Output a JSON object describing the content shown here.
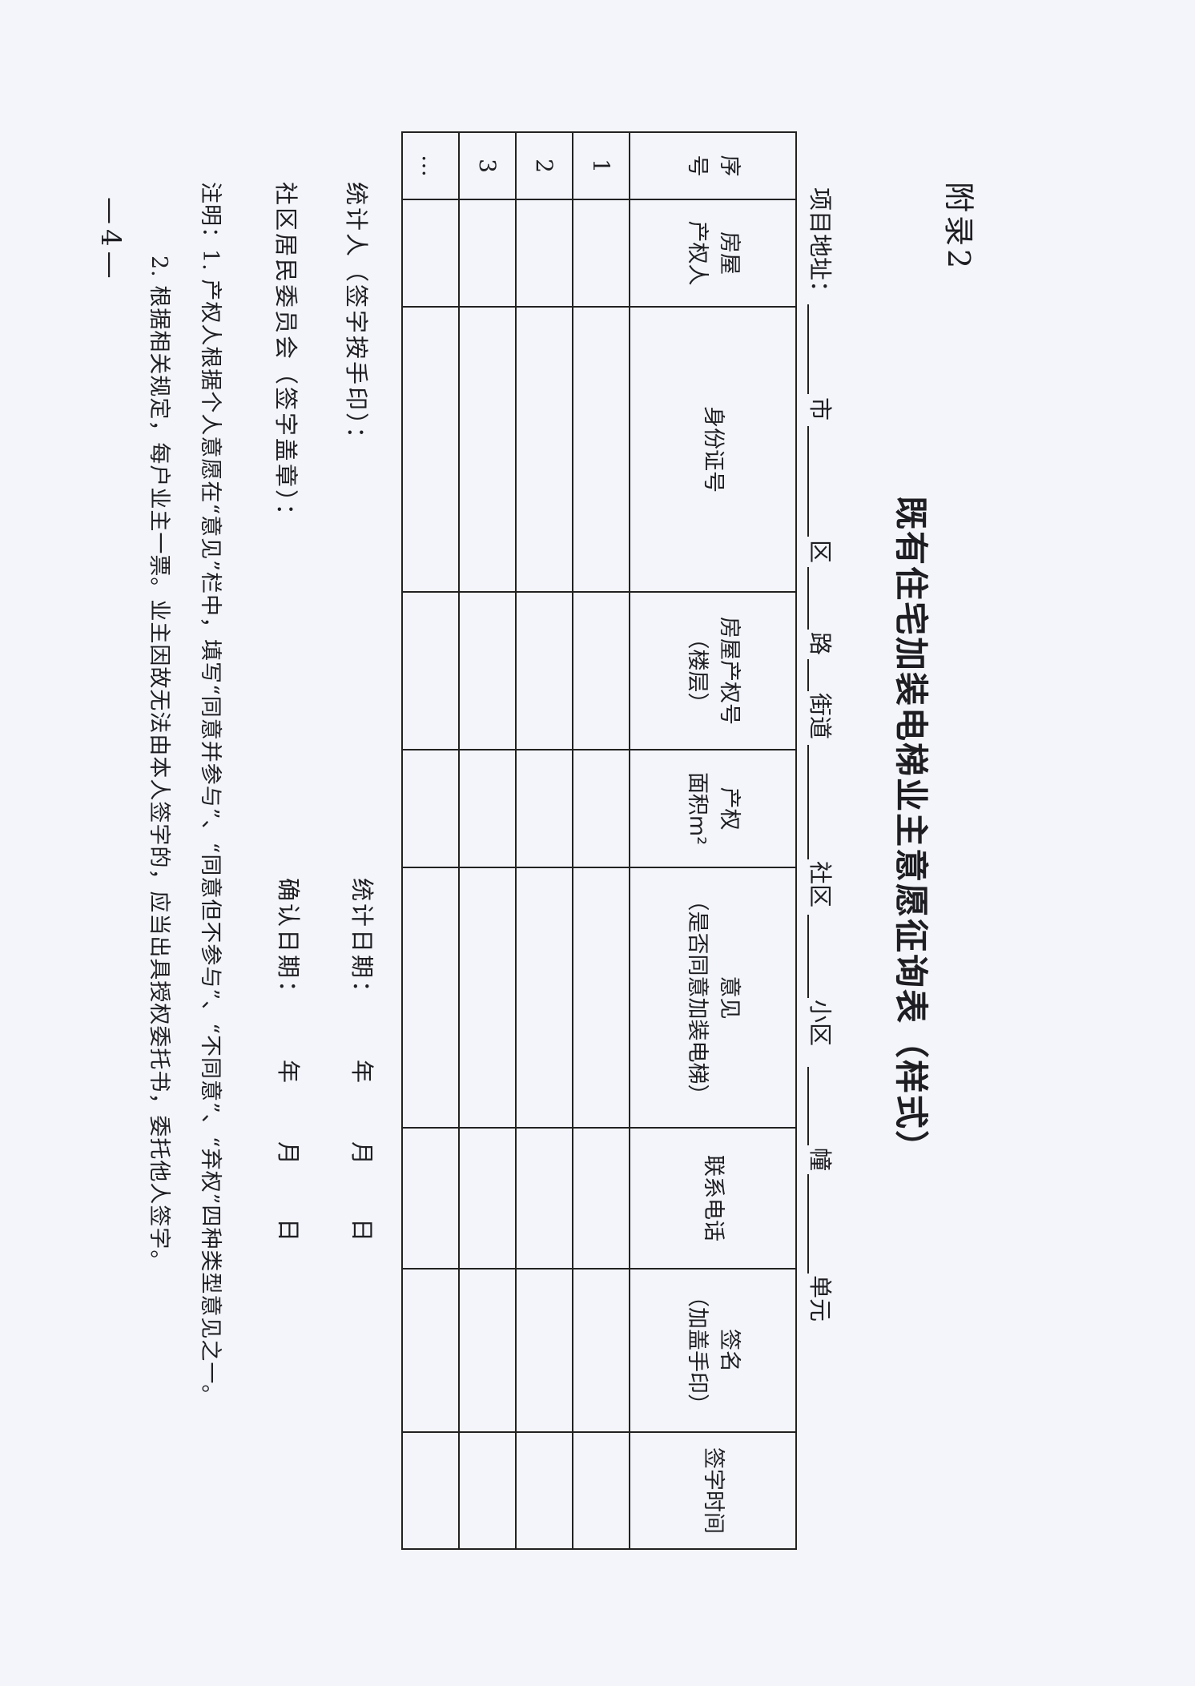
{
  "appendix_label": "附录2",
  "title": "既有住宅加装电梯业主意愿征询表（样式）",
  "address": {
    "label": "项目地址：",
    "parts": [
      "市",
      "区",
      "路",
      "街道",
      "社区",
      "小区",
      "幢",
      "单元"
    ]
  },
  "table": {
    "headers": [
      "序\n号",
      "房屋\n产权人",
      "身份证号",
      "房屋产权号\n（楼层）",
      "产权\n面积m²",
      "意见\n（是否同意加装电梯）",
      "联系电话",
      "签名\n（加盖手印）",
      "签字时间"
    ],
    "rows": [
      {
        "index": "1"
      },
      {
        "index": "2"
      },
      {
        "index": "3"
      },
      {
        "index": "…"
      }
    ]
  },
  "footer": {
    "counter_label": "统计人（签字按手印）：",
    "count_date_label": "统计日期：",
    "committee_label": "社区居民委员会（签字盖章）：",
    "confirm_date_label": "确认日期：",
    "year": "年",
    "month": "月",
    "day": "日"
  },
  "notes": {
    "line1": "注明：1. 产权人根据个人意愿在“意见”栏中，填写“同意并参与”、“同意但不参与”、“不同意”、“弃权”四种类型意见之一。",
    "line2": "2. 根据相关规定，每户业主一票。业主因故无法由本人签字的，应当出具授权委托书，委托他人签字。"
  },
  "page_number": "—4—"
}
